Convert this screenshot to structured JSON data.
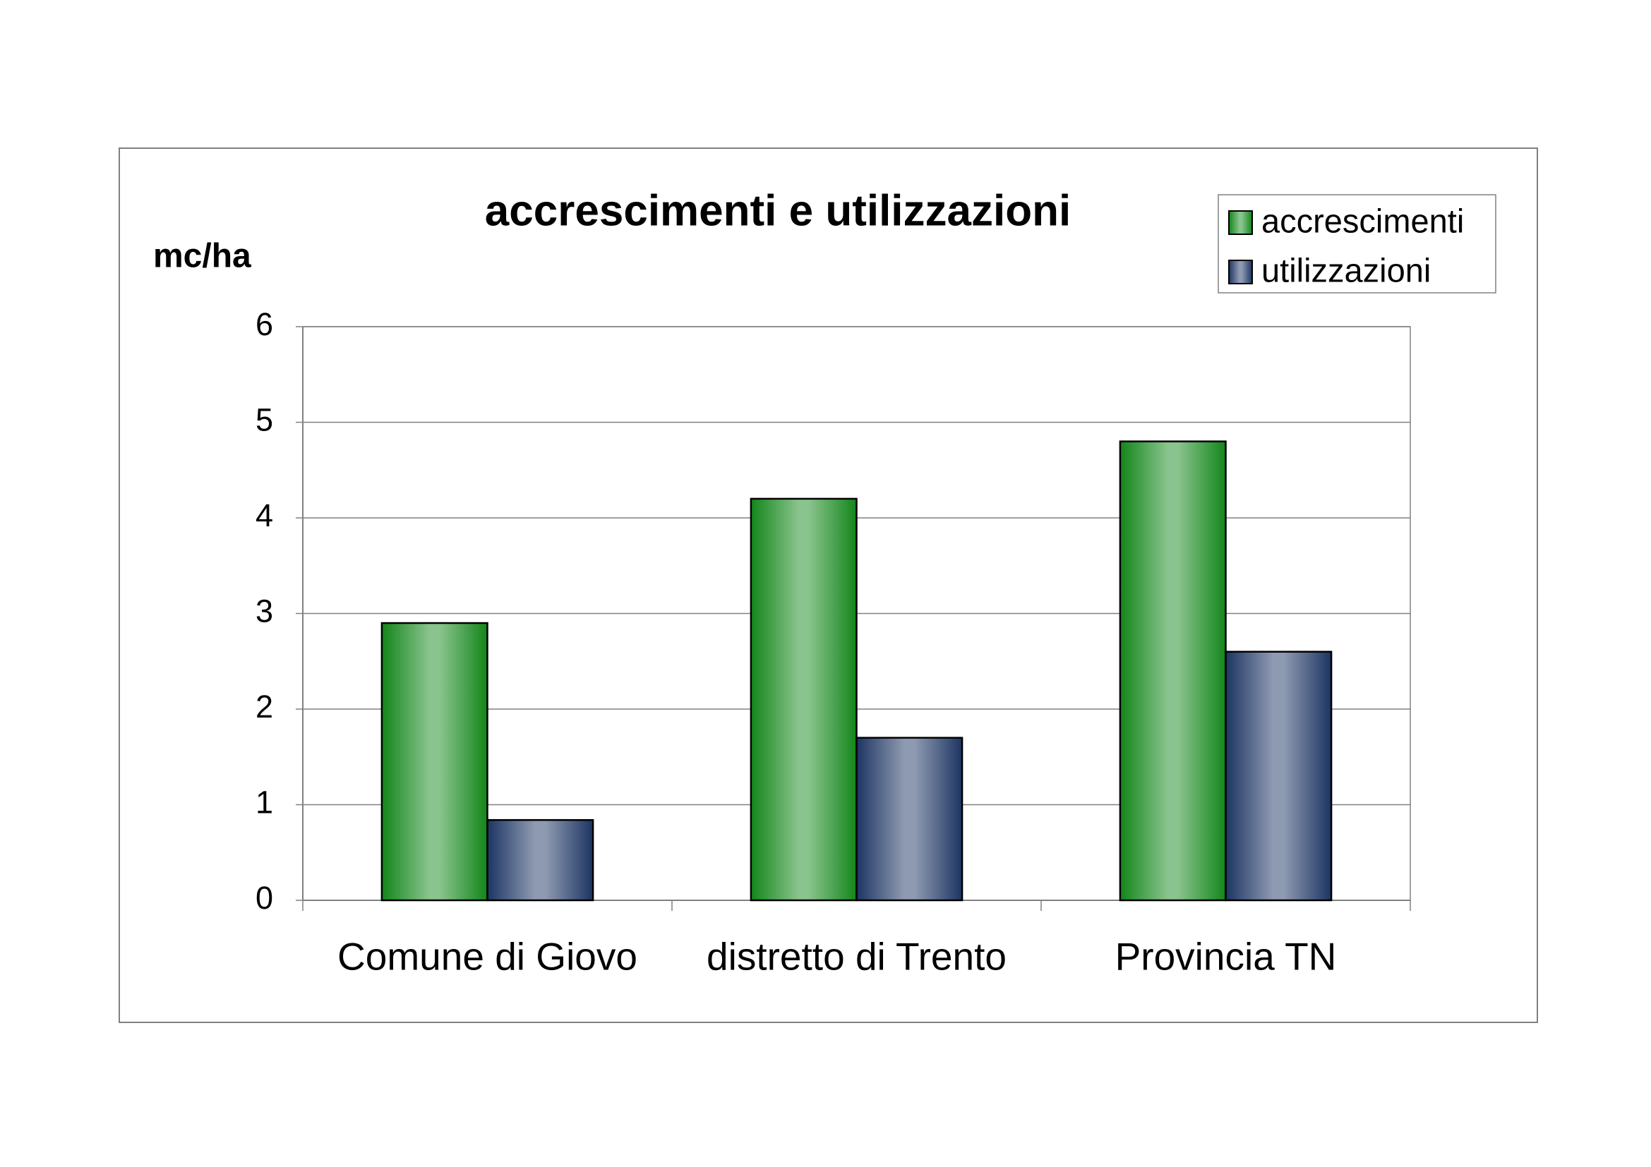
{
  "chart_data": {
    "type": "bar",
    "title": "accrescimenti e utilizzazioni",
    "y_label": "mc/ha",
    "categories": [
      "Comune di Giovo",
      "distretto di Trento",
      "Provincia TN"
    ],
    "series": [
      {
        "name": "accrescimenti",
        "color": "#13861a",
        "values": [
          2.9,
          4.2,
          4.8
        ]
      },
      {
        "name": "utilizzazioni",
        "color": "#1d3563",
        "values": [
          0.84,
          1.7,
          2.6
        ]
      }
    ],
    "ylim": [
      0,
      6
    ],
    "yticks": [
      0,
      1,
      2,
      3,
      4,
      5,
      6
    ],
    "grid": true,
    "legend": "top-right"
  }
}
